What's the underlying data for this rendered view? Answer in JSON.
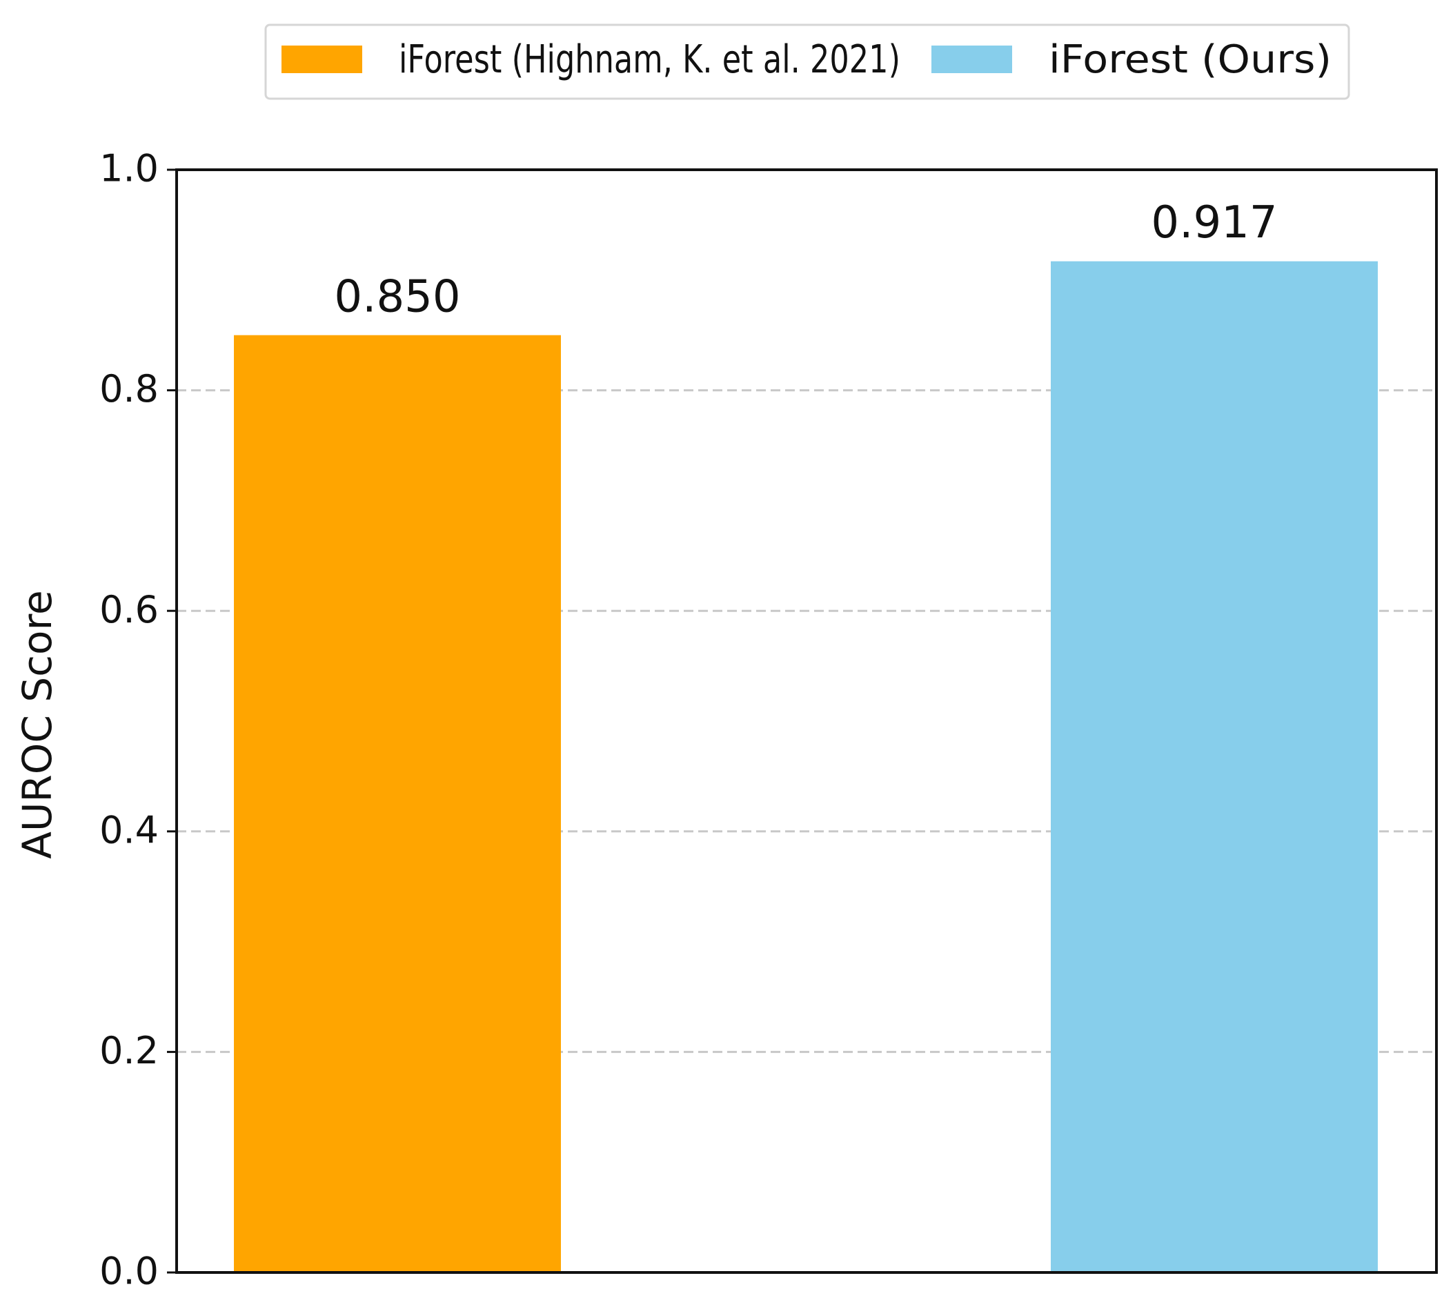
{
  "chart_data": {
    "type": "bar",
    "ylabel": "AUROC Score",
    "series": [
      {
        "name": "iForest (Highnam, K. et al. 2021)",
        "color": "#ffa500",
        "values": [
          0.85
        ],
        "value_labels": [
          "0.850"
        ]
      },
      {
        "name": "iForest (Ours)",
        "color": "#87ceeb",
        "values": [
          0.917
        ]
      }
    ],
    "ylim": [
      0,
      1
    ],
    "yticks": [
      {
        "value": 0,
        "label": "0.0"
      },
      0.2,
      0.4,
      0.6,
      0.8,
      {
        "value": 1,
        "label": "1.0"
      }
    ],
    "grid": true,
    "legend": "top"
  }
}
